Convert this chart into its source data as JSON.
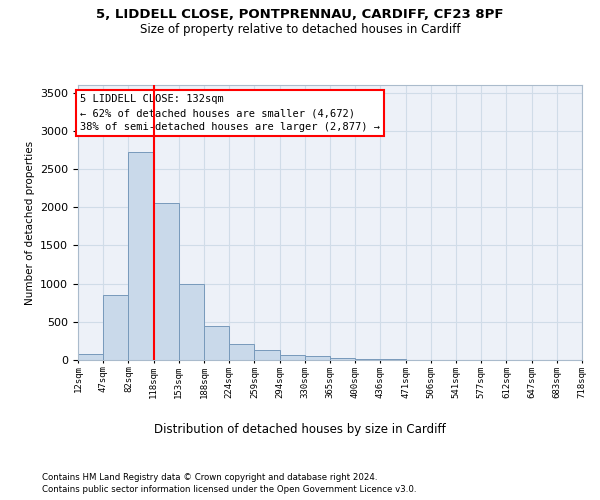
{
  "title_line1": "5, LIDDELL CLOSE, PONTPRENNAU, CARDIFF, CF23 8PF",
  "title_line2": "Size of property relative to detached houses in Cardiff",
  "xlabel": "Distribution of detached houses by size in Cardiff",
  "ylabel": "Number of detached properties",
  "tick_labels": [
    "12sqm",
    "47sqm",
    "82sqm",
    "118sqm",
    "153sqm",
    "188sqm",
    "224sqm",
    "259sqm",
    "294sqm",
    "330sqm",
    "365sqm",
    "400sqm",
    "436sqm",
    "471sqm",
    "506sqm",
    "541sqm",
    "577sqm",
    "612sqm",
    "647sqm",
    "683sqm",
    "718sqm"
  ],
  "bar_values": [
    75,
    850,
    2725,
    2050,
    1000,
    450,
    210,
    130,
    65,
    55,
    25,
    15,
    10,
    5,
    2,
    1,
    0,
    0,
    0,
    0
  ],
  "bar_color": "#c9d9ea",
  "bar_edge_color": "#7799bb",
  "annotation_title": "5 LIDDELL CLOSE: 132sqm",
  "annotation_line2": "← 62% of detached houses are smaller (4,672)",
  "annotation_line3": "38% of semi-detached houses are larger (2,877) →",
  "ylim": [
    0,
    3600
  ],
  "yticks": [
    0,
    500,
    1000,
    1500,
    2000,
    2500,
    3000,
    3500
  ],
  "grid_color": "#d0dce8",
  "bg_color": "#edf1f8",
  "footnote1": "Contains HM Land Registry data © Crown copyright and database right 2024.",
  "footnote2": "Contains public sector information licensed under the Open Government Licence v3.0."
}
